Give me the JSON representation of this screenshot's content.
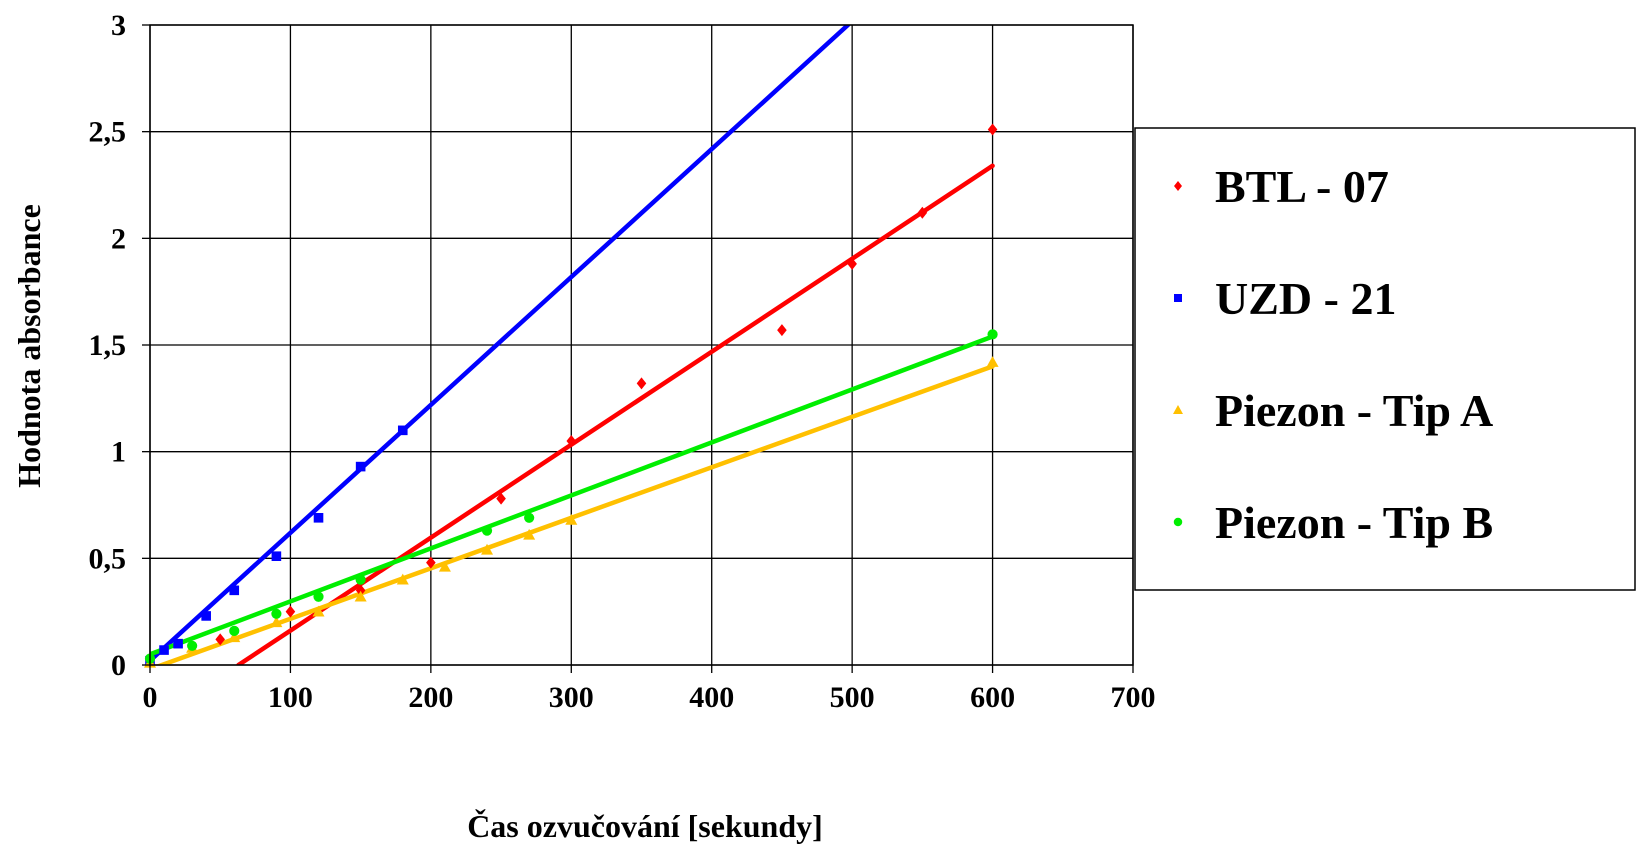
{
  "chart_data": {
    "type": "scatter",
    "xlabel": "Čas ozvučování [sekundy]",
    "ylabel": "Hodnota absorbance",
    "xlim": [
      0,
      700
    ],
    "ylim": [
      0,
      3
    ],
    "xticks": [
      "0",
      "100",
      "200",
      "300",
      "400",
      "500",
      "600",
      "700"
    ],
    "yticks": [
      "0",
      "0,5",
      "1",
      "1,5",
      "2",
      "2,5",
      "3"
    ],
    "grid": true,
    "legend_position": "right",
    "series": [
      {
        "name": "BTL - 07",
        "color": "#ff0000",
        "marker": "diamond",
        "points": [
          [
            50,
            0.12
          ],
          [
            100,
            0.25
          ],
          [
            150,
            0.35
          ],
          [
            200,
            0.48
          ],
          [
            250,
            0.78
          ],
          [
            300,
            1.05
          ],
          [
            350,
            1.32
          ],
          [
            450,
            1.57
          ],
          [
            500,
            1.88
          ],
          [
            550,
            2.12
          ],
          [
            600,
            2.51
          ]
        ],
        "trendline": [
          [
            63,
            0
          ],
          [
            600,
            2.34
          ]
        ]
      },
      {
        "name": "UZD - 21",
        "color": "#0000ff",
        "marker": "square",
        "points": [
          [
            0,
            0.02
          ],
          [
            10,
            0.07
          ],
          [
            20,
            0.1
          ],
          [
            40,
            0.23
          ],
          [
            60,
            0.35
          ],
          [
            90,
            0.51
          ],
          [
            120,
            0.69
          ],
          [
            150,
            0.93
          ],
          [
            180,
            1.1
          ]
        ],
        "trendline": [
          [
            0,
            0.02
          ],
          [
            497,
            3.0
          ]
        ]
      },
      {
        "name": "Piezon - Tip A",
        "color": "#ffc000",
        "marker": "triangle",
        "points": [
          [
            0,
            0.01
          ],
          [
            30,
            0.08
          ],
          [
            60,
            0.13
          ],
          [
            90,
            0.2
          ],
          [
            120,
            0.25
          ],
          [
            150,
            0.32
          ],
          [
            180,
            0.4
          ],
          [
            210,
            0.46
          ],
          [
            240,
            0.54
          ],
          [
            270,
            0.61
          ],
          [
            300,
            0.68
          ],
          [
            600,
            1.42
          ]
        ],
        "trendline": [
          [
            0,
            -0.02
          ],
          [
            600,
            1.4
          ]
        ]
      },
      {
        "name": "Piezon - Tip B",
        "color": "#00ee00",
        "marker": "circle",
        "points": [
          [
            0,
            0.03
          ],
          [
            30,
            0.09
          ],
          [
            60,
            0.16
          ],
          [
            90,
            0.24
          ],
          [
            120,
            0.32
          ],
          [
            150,
            0.4
          ],
          [
            240,
            0.63
          ],
          [
            270,
            0.69
          ],
          [
            600,
            1.55
          ]
        ],
        "trendline": [
          [
            0,
            0.05
          ],
          [
            600,
            1.54
          ]
        ]
      }
    ]
  }
}
